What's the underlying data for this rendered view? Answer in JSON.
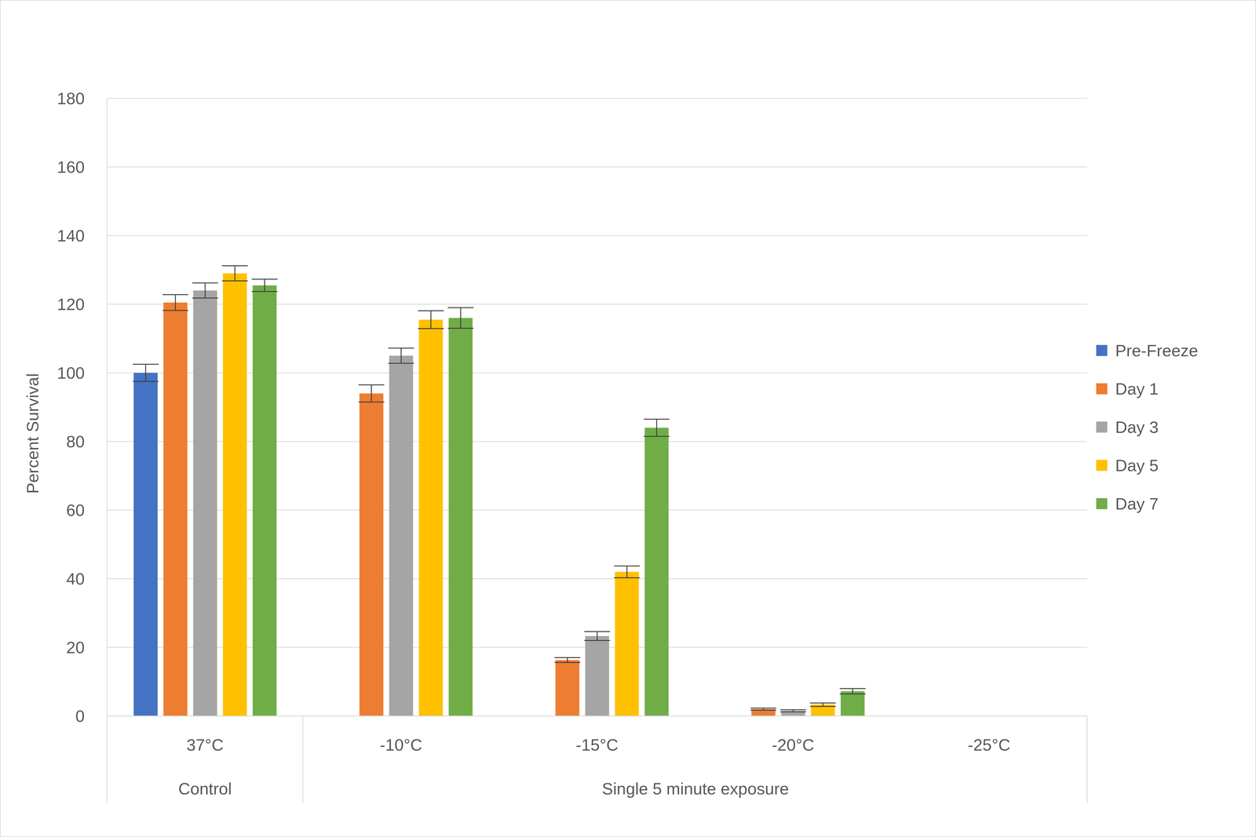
{
  "chart_data": {
    "type": "bar",
    "categories": [
      "37°C",
      "-10°C",
      "-15°C",
      "-20°C",
      "-25°C"
    ],
    "groups": [
      {
        "name": "Control",
        "categories": [
          "37°C"
        ]
      },
      {
        "name": "Single 5 minute exposure",
        "categories": [
          "-10°C",
          "-15°C",
          "-20°C",
          "-25°C"
        ]
      }
    ],
    "y_label": "Percent Survival",
    "ylim": [
      0,
      180
    ],
    "yticks": [
      0,
      20,
      40,
      60,
      80,
      100,
      120,
      140,
      160,
      180
    ],
    "grid": true,
    "legend": "right",
    "series": [
      {
        "name": "Pre-Freeze",
        "color": "#4472C4",
        "values": [
          100,
          null,
          null,
          null,
          null
        ],
        "errors": [
          2.5,
          null,
          null,
          null,
          null
        ]
      },
      {
        "name": "Day 1",
        "color": "#ED7D31",
        "values": [
          120.5,
          94,
          16.3,
          2,
          null
        ],
        "errors": [
          2.3,
          2.5,
          0.7,
          0.3,
          null
        ]
      },
      {
        "name": "Day 3",
        "color": "#A5A5A5",
        "values": [
          124,
          105,
          23.3,
          1.5,
          null
        ],
        "errors": [
          2.2,
          2.2,
          1.3,
          0.3,
          null
        ]
      },
      {
        "name": "Day 5",
        "color": "#FFC000",
        "values": [
          129,
          115.5,
          42,
          3.3,
          null
        ],
        "errors": [
          2.2,
          2.6,
          1.7,
          0.5,
          null
        ]
      },
      {
        "name": "Day 7",
        "color": "#70AD47",
        "values": [
          125.5,
          116,
          84,
          7.2,
          null
        ],
        "errors": [
          1.8,
          3,
          2.5,
          0.8,
          null
        ]
      }
    ]
  }
}
